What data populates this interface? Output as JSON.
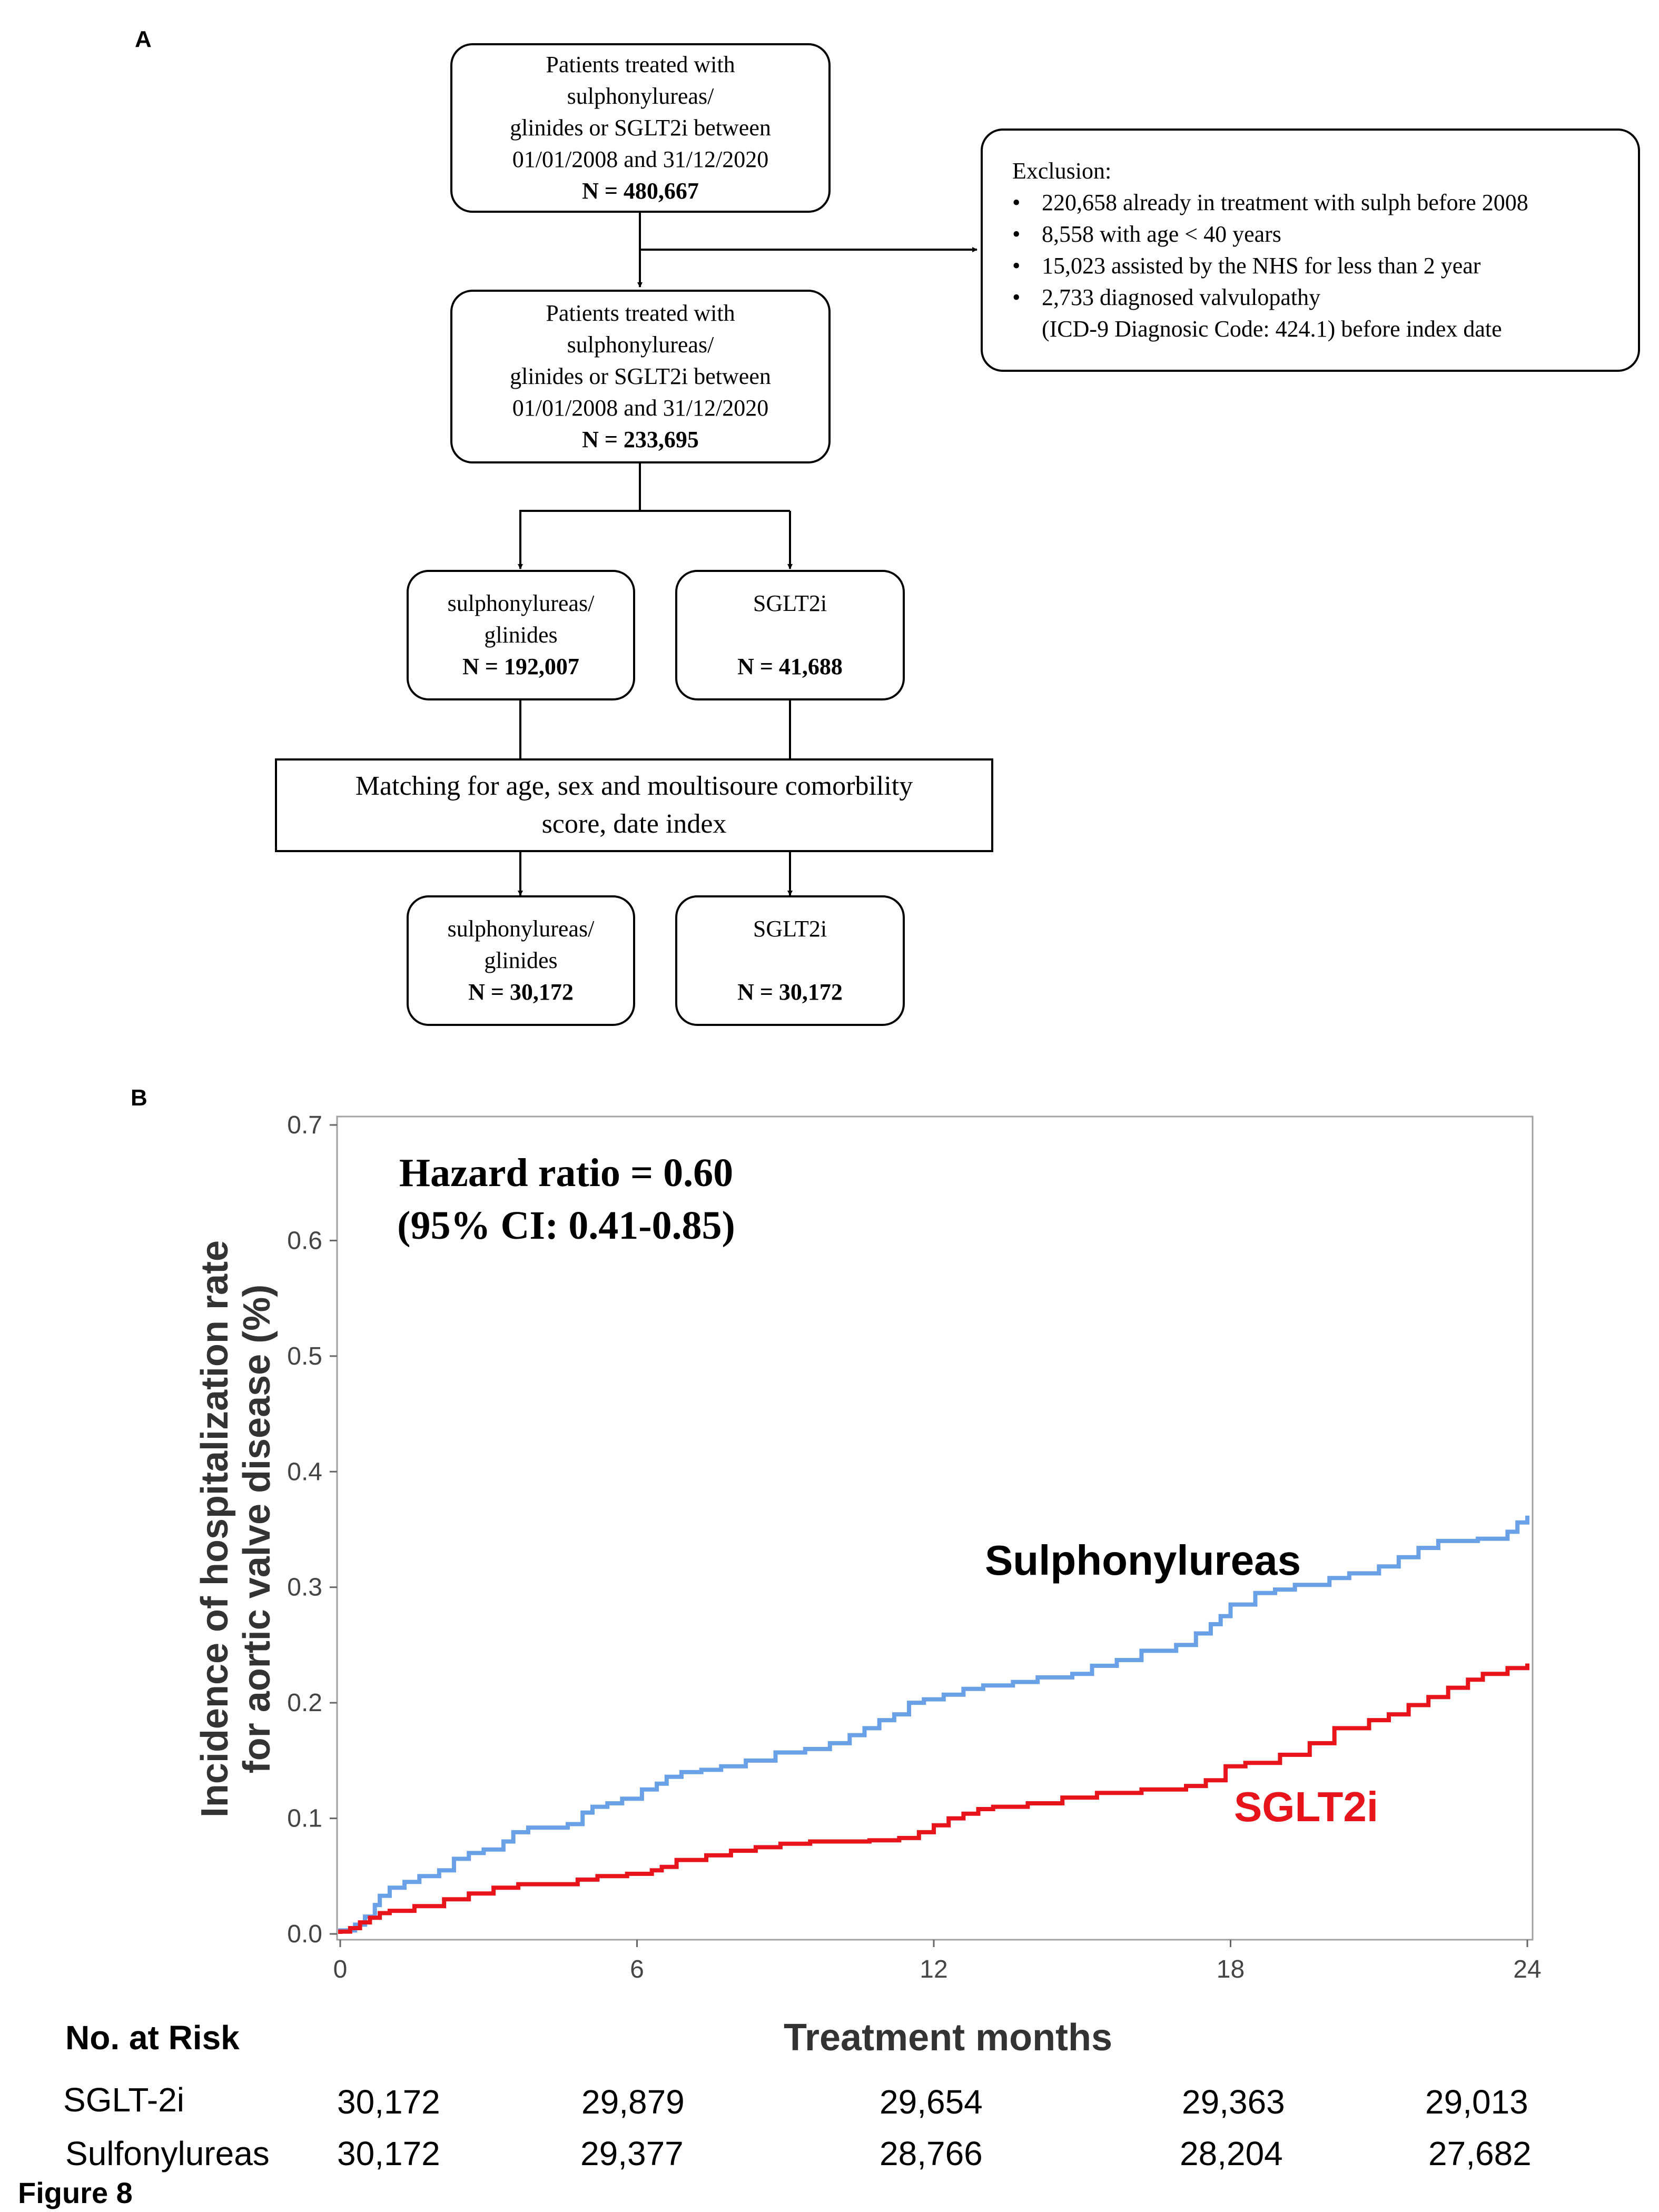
{
  "panel_a": {
    "label": "A",
    "box_initial": {
      "lines": [
        "Patients treated with",
        "sulphonylureas/",
        "glinides or SGLT2i between",
        "01/01/2008 and 31/12/2020"
      ],
      "n": "N = 480,667"
    },
    "exclusion": {
      "title": "Exclusion:",
      "items": [
        "220,658 already in treatment with sulph before 2008",
        "8,558 with age < 40 years",
        "15,023 assisted by the NHS for less than 2 year",
        "2,733 diagnosed valvulopathy"
      ],
      "continuation": "(ICD-9 Diagnosic Code: 424.1) before index date"
    },
    "box_eligible": {
      "lines": [
        "Patients treated with",
        "sulphonylureas/",
        "glinides or SGLT2i between",
        "01/01/2008 and 31/12/2020"
      ],
      "n": "N = 233,695"
    },
    "group_sulph": {
      "lines": [
        "sulphonylureas/",
        "glinides"
      ],
      "n": "N = 192,007"
    },
    "group_sglt2": {
      "lines": [
        "SGLT2i"
      ],
      "n": "N = 41,688"
    },
    "matching": {
      "lines": [
        "Matching for age, sex and moultisoure comorbility",
        "score, date index"
      ]
    },
    "matched_sulph": {
      "lines": [
        "sulphonylureas/",
        "glinides"
      ],
      "n": "N = 30,172"
    },
    "matched_sglt2": {
      "lines": [
        "SGLT2i"
      ],
      "n": "N = 30,172"
    }
  },
  "panel_b": {
    "label": "B"
  },
  "chart_data": {
    "type": "line",
    "title": "",
    "annotation": [
      "Hazard ratio = 0.60",
      "(95% CI: 0.41-0.85)"
    ],
    "xlabel": "Treatment months",
    "ylabel": [
      "Incidence of hospitalization rate",
      "for aortic valve disease  (%)"
    ],
    "xlim": [
      0,
      24
    ],
    "ylim": [
      0,
      0.7
    ],
    "xticks": [
      "0",
      "6",
      "12",
      "18",
      "24"
    ],
    "yticks": [
      "0.0",
      "0.1",
      "0.2",
      "0.3",
      "0.4",
      "0.5",
      "0.6",
      "0.7"
    ],
    "grid": false,
    "series": [
      {
        "name": "Sulphonylureas",
        "color": "#6aa0e6",
        "label_color": "#000000",
        "step": true,
        "x": [
          0,
          0.3,
          0.5,
          0.7,
          0.8,
          1.0,
          1.3,
          1.6,
          2.0,
          2.3,
          2.6,
          2.9,
          3.3,
          3.5,
          3.8,
          4.2,
          4.6,
          4.9,
          5.1,
          5.4,
          5.7,
          6.1,
          6.4,
          6.6,
          6.9,
          7.3,
          7.7,
          8.2,
          8.8,
          9.4,
          9.9,
          10.3,
          10.6,
          10.9,
          11.2,
          11.5,
          11.8,
          12.2,
          12.6,
          13.0,
          13.6,
          14.1,
          14.8,
          15.2,
          15.7,
          16.2,
          16.9,
          17.3,
          17.6,
          17.8,
          18.0,
          18.5,
          18.9,
          19.3,
          20.0,
          20.4,
          21.0,
          21.4,
          21.8,
          22.2,
          23.0,
          23.6,
          23.8,
          24.0
        ],
        "y": [
          0.003,
          0.008,
          0.015,
          0.025,
          0.033,
          0.04,
          0.045,
          0.05,
          0.055,
          0.065,
          0.07,
          0.073,
          0.08,
          0.088,
          0.092,
          0.092,
          0.095,
          0.105,
          0.11,
          0.113,
          0.117,
          0.125,
          0.13,
          0.136,
          0.14,
          0.142,
          0.145,
          0.15,
          0.157,
          0.16,
          0.165,
          0.172,
          0.178,
          0.185,
          0.19,
          0.2,
          0.203,
          0.207,
          0.212,
          0.215,
          0.218,
          0.222,
          0.225,
          0.232,
          0.237,
          0.245,
          0.25,
          0.26,
          0.268,
          0.275,
          0.285,
          0.295,
          0.298,
          0.302,
          0.308,
          0.312,
          0.318,
          0.326,
          0.334,
          0.34,
          0.342,
          0.348,
          0.356,
          0.362
        ]
      },
      {
        "name": "SGLT2i",
        "color": "#e8141c",
        "label_color": "#e8141c",
        "step": true,
        "x": [
          0,
          0.2,
          0.4,
          0.6,
          0.8,
          1.0,
          1.5,
          2.1,
          2.6,
          3.1,
          3.6,
          4.8,
          5.2,
          5.8,
          6.3,
          6.5,
          6.8,
          7.4,
          7.9,
          8.4,
          8.9,
          9.5,
          10.0,
          10.7,
          11.3,
          11.7,
          12.0,
          12.3,
          12.6,
          12.9,
          13.2,
          13.9,
          14.6,
          15.3,
          16.2,
          17.1,
          17.5,
          17.9,
          18.3,
          19.0,
          19.6,
          20.1,
          20.8,
          21.2,
          21.6,
          22.0,
          22.4,
          22.8,
          23.1,
          23.6,
          24.0
        ],
        "y": [
          0.002,
          0.005,
          0.01,
          0.014,
          0.018,
          0.02,
          0.024,
          0.03,
          0.035,
          0.04,
          0.043,
          0.047,
          0.05,
          0.052,
          0.055,
          0.058,
          0.064,
          0.068,
          0.072,
          0.075,
          0.078,
          0.08,
          0.08,
          0.081,
          0.083,
          0.088,
          0.094,
          0.1,
          0.104,
          0.108,
          0.11,
          0.113,
          0.118,
          0.122,
          0.125,
          0.128,
          0.133,
          0.145,
          0.148,
          0.155,
          0.165,
          0.178,
          0.185,
          0.19,
          0.198,
          0.205,
          0.213,
          0.22,
          0.225,
          0.23,
          0.234
        ]
      }
    ]
  },
  "risk_table": {
    "title": "No. at Risk",
    "rows": [
      {
        "label": "SGLT-2i",
        "values": [
          "30,172",
          "29,879",
          "29,654",
          "29,363",
          "29,013"
        ]
      },
      {
        "label": "Sulfonylureas",
        "values": [
          "30,172",
          "29,377",
          "28,766",
          "28,204",
          "27,682"
        ]
      }
    ]
  },
  "figure_label": "Figure 8"
}
